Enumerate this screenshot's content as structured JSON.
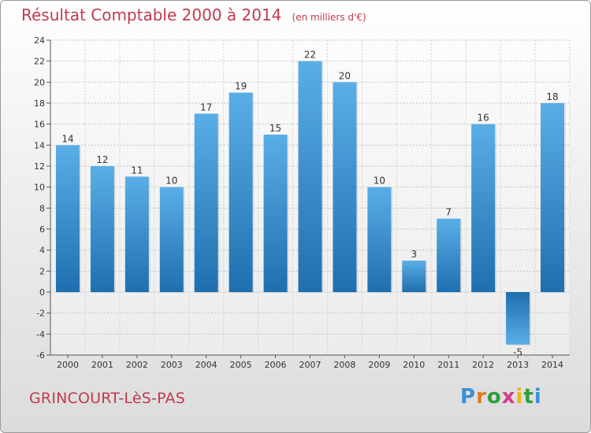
{
  "header": {
    "title": "Résultat Comptable 2000 à 2014",
    "subtitle": "(en milliers d'€)"
  },
  "footer": {
    "commune": "GRINCOURT-LèS-PAS",
    "logo_text": "Proxiti"
  },
  "colors": {
    "bar_light": "#5aaee6",
    "bar_dark": "#1e6fb0",
    "title": "#c23a4f"
  },
  "chart_data": {
    "type": "bar",
    "categories": [
      "2000",
      "2001",
      "2002",
      "2003",
      "2004",
      "2005",
      "2006",
      "2007",
      "2008",
      "2009",
      "2010",
      "2011",
      "2012",
      "2013",
      "2014"
    ],
    "values": [
      14,
      12,
      11,
      10,
      17,
      19,
      15,
      22,
      20,
      10,
      3,
      7,
      16,
      -5,
      18
    ],
    "ylim": [
      -6,
      24
    ],
    "yticks": [
      -6,
      -4,
      -2,
      0,
      2,
      4,
      6,
      8,
      10,
      12,
      14,
      16,
      18,
      20,
      22,
      24
    ],
    "grid": true,
    "title": "Résultat Comptable 2000 à 2014",
    "xlabel": "",
    "ylabel": ""
  }
}
